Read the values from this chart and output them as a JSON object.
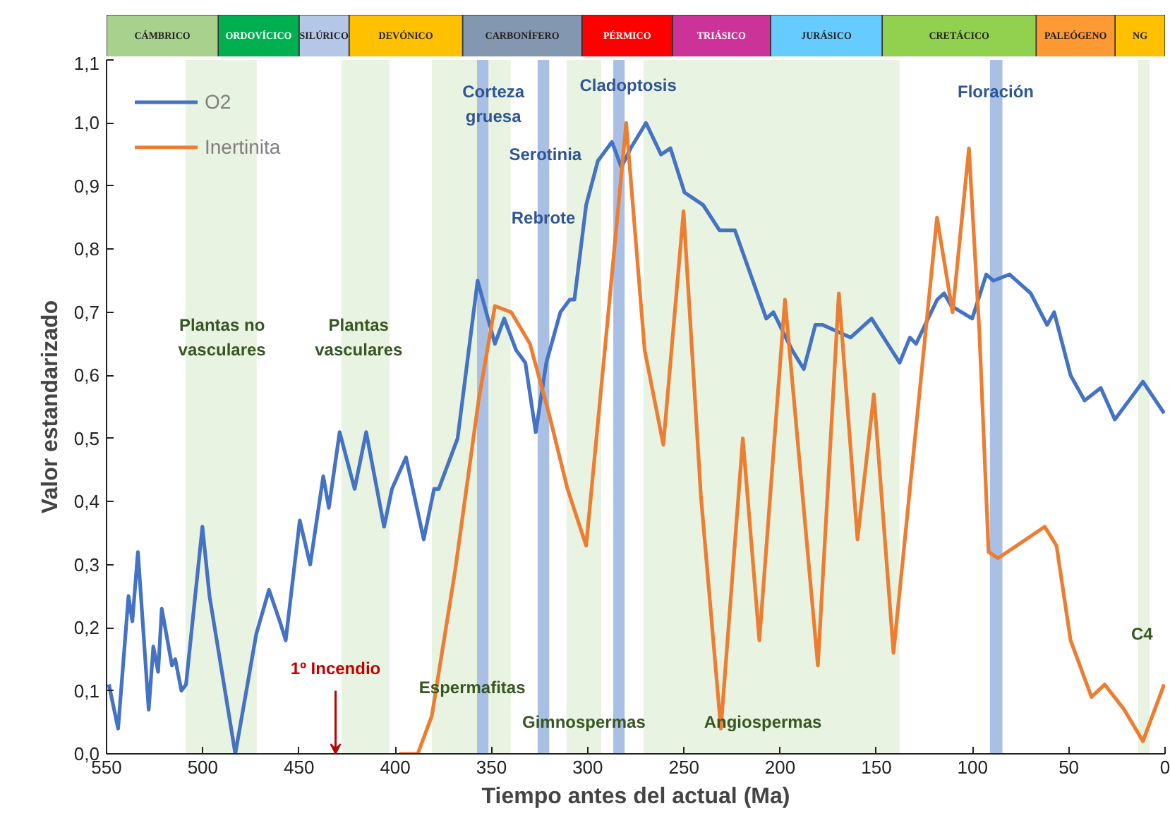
{
  "chart_data": [
    {
      "type": "bar",
      "orientation": "horizontal",
      "stacked": true,
      "categories": [
        null
      ],
      "xlim": [
        550,
        0
      ],
      "tick_labels": false,
      "series": [
        {
          "name": "NG",
          "color": "#ffc000",
          "values": [
            26
          ]
        },
        {
          "name": "PALEÓGENO",
          "color": "#ff9933",
          "values": [
            41
          ]
        },
        {
          "name": "CRETÁCICO",
          "color": "#92d050",
          "values": [
            80
          ]
        },
        {
          "name": "JURÁSICO",
          "color": "#66ccff",
          "values": [
            58
          ]
        },
        {
          "name": "TRIÁSICO",
          "color": "#cc3399",
          "values": [
            51
          ]
        },
        {
          "name": "PÉRMICO",
          "color": "#ff0000",
          "values": [
            47
          ]
        },
        {
          "name": "CARBONÍFERO",
          "color": "#8497b0",
          "values": [
            62
          ]
        },
        {
          "name": "DEVÓNICO",
          "color": "#ffc000",
          "values": [
            59
          ]
        },
        {
          "name": "SILÚRICO",
          "color": "#b4c7e7",
          "values": [
            26
          ]
        },
        {
          "name": "ORDOVÍCICO",
          "color": "#00b050",
          "values": [
            42
          ]
        },
        {
          "name": "CÁMBRICO",
          "color": "#a9d18e",
          "values": [
            58
          ]
        }
      ]
    },
    {
      "type": "line",
      "xlabel": "Tiempo antes del actual (Ma)",
      "ylabel": "Valor estandarizado",
      "xlim": [
        550,
        0
      ],
      "xticks": [
        550,
        500,
        450,
        400,
        350,
        300,
        250,
        200,
        150,
        100,
        50,
        0
      ],
      "ylim": [
        0,
        1.1
      ],
      "yticks": [
        {
          "value": 0,
          "label": "0,0"
        },
        {
          "value": 0.1,
          "label": "0,1"
        },
        {
          "value": 0.2,
          "label": "0,2"
        },
        {
          "value": 0.3,
          "label": "0,3"
        },
        {
          "value": 0.4,
          "label": "0,4"
        },
        {
          "value": 0.5,
          "label": "0,5"
        },
        {
          "value": 0.6,
          "label": "0,6"
        },
        {
          "value": 0.7,
          "label": "0,7"
        },
        {
          "value": 0.8,
          "label": "0,8"
        },
        {
          "value": 0.9,
          "label": "0,9"
        },
        {
          "value": 1.0,
          "label": "1,0"
        },
        {
          "value": 1.1,
          "label": "1,1"
        }
      ],
      "grid": false,
      "legend": "top left",
      "marker": "none",
      "line_style": "solid",
      "series": [
        {
          "name": "O2",
          "color": "#4472c4",
          "x": [
            548.8,
            544,
            538.6,
            536.6,
            533.7,
            528.1,
            525.7,
            523.2,
            521.3,
            516,
            514.3,
            511.1,
            508.7,
            500.2,
            496.5,
            483.1,
            472.2,
            465.6,
            460,
            456.9,
            449.6,
            444.2,
            437.4,
            434.5,
            428.9,
            421.1,
            415.1,
            405.8,
            401.7,
            394.4,
            385.2,
            379.8,
            377.4,
            367.6,
            357.2,
            348.2,
            343.4,
            337.2,
            332.4,
            327,
            321.5,
            314.2,
            309.3,
            306.9,
            300.8,
            294.7,
            287.4,
            282.5,
            277.7,
            269.7,
            261.9,
            257,
            249.7,
            240,
            231.5,
            223.5,
            207.2,
            203.5,
            193.8,
            187.7,
            181.7,
            178,
            163.4,
            152.5,
            137.9,
            132.6,
            129.4,
            118.4,
            114.8,
            111.1,
            100.2,
            92.9,
            89.2,
            80.8,
            69.8,
            61.3,
            57.6,
            49.1,
            41.8,
            33.4,
            26.1,
            21.2,
            11.5,
            0.5
          ],
          "values": [
            0.11,
            0.04,
            0.25,
            0.21,
            0.32,
            0.07,
            0.17,
            0.13,
            0.23,
            0.14,
            0.15,
            0.1,
            0.11,
            0.36,
            0.25,
            0.0,
            0.19,
            0.26,
            0.21,
            0.18,
            0.37,
            0.3,
            0.44,
            0.39,
            0.51,
            0.42,
            0.51,
            0.36,
            0.42,
            0.47,
            0.34,
            0.42,
            0.42,
            0.5,
            0.75,
            0.65,
            0.69,
            0.64,
            0.62,
            0.51,
            0.62,
            0.7,
            0.72,
            0.72,
            0.87,
            0.94,
            0.97,
            0.93,
            0.96,
            1.0,
            0.95,
            0.96,
            0.89,
            0.87,
            0.83,
            0.83,
            0.69,
            0.7,
            0.64,
            0.61,
            0.68,
            0.68,
            0.66,
            0.69,
            0.62,
            0.66,
            0.65,
            0.72,
            0.73,
            0.71,
            0.69,
            0.76,
            0.75,
            0.76,
            0.73,
            0.68,
            0.7,
            0.6,
            0.56,
            0.58,
            0.53,
            0.55,
            0.59,
            0.54
          ]
        },
        {
          "name": "Inertinita",
          "color": "#ed7d31",
          "x": [
            398,
            388.3,
            381,
            368.9,
            356.7,
            348.2,
            339.7,
            330,
            320.2,
            310.5,
            300.8,
            291.1,
            280,
            270.4,
            260.7,
            250.2,
            241.2,
            230.8,
            219.4,
            210.8,
            197.5,
            180.4,
            169.5,
            159.8,
            151.3,
            141.1,
            130.6,
            118.5,
            110.4,
            101.9,
            96.5,
            91.7,
            86.8,
            62.5,
            56.4,
            49.1,
            38.2,
            31.4,
            21.2,
            11.5,
            0.5
          ],
          "values": [
            0,
            0,
            0.06,
            0.29,
            0.56,
            0.71,
            0.7,
            0.65,
            0.54,
            0.42,
            0.33,
            0.64,
            1.0,
            0.64,
            0.49,
            0.86,
            0.41,
            0.04,
            0.5,
            0.18,
            0.72,
            0.14,
            0.73,
            0.34,
            0.57,
            0.16,
            0.48,
            0.85,
            0.7,
            0.96,
            0.67,
            0.32,
            0.31,
            0.36,
            0.33,
            0.18,
            0.09,
            0.11,
            0.07,
            0.02,
            0.11
          ]
        }
      ],
      "bands": [
        {
          "axis": "x",
          "from": 509,
          "to": 472,
          "color": "#e9f3e1"
        },
        {
          "axis": "x",
          "from": 428,
          "to": 403,
          "color": "#e9f3e1"
        },
        {
          "axis": "x",
          "from": 381,
          "to": 340,
          "color": "#e9f3e1"
        },
        {
          "axis": "x",
          "from": 311,
          "to": 293,
          "color": "#e9f3e1"
        },
        {
          "axis": "x",
          "from": 271,
          "to": 138,
          "color": "#e9f3e1"
        },
        {
          "axis": "x",
          "from": 14,
          "to": 8,
          "color": "#e9f3e1"
        },
        {
          "axis": "x",
          "from": 357.5,
          "to": 351.6,
          "color": "#aabfe4"
        },
        {
          "axis": "x",
          "from": 326,
          "to": 320,
          "color": "#aabfe4"
        },
        {
          "axis": "x",
          "from": 286.7,
          "to": 280.8,
          "color": "#aabfe4"
        },
        {
          "axis": "x",
          "from": 91,
          "to": 84.5,
          "color": "#aabfe4"
        }
      ],
      "annotations": [
        {
          "text": "Corteza\ngruesa",
          "x": 349,
          "y": 1.03
        },
        {
          "text": "Cladoptosis",
          "x": 279,
          "y": 1.06
        },
        {
          "text": "Serotinia",
          "x": 322,
          "y": 0.95
        },
        {
          "text": "Rebrote",
          "x": 323,
          "y": 0.85
        },
        {
          "text": "Floración",
          "x": 88,
          "y": 1.05
        },
        "Plantas no\nvasculares",
        "Plantas\nvasculares",
        {
          "text": "Espermafitas",
          "x": 360,
          "y": 0.105
        },
        "Gimnospermas",
        "Angiospermas",
        {
          "text": "C4",
          "x": 12,
          "y": 0.19
        },
        {
          "text": "1º Incendio",
          "x": 431,
          "y": 0
        }
      ]
    }
  ]
}
